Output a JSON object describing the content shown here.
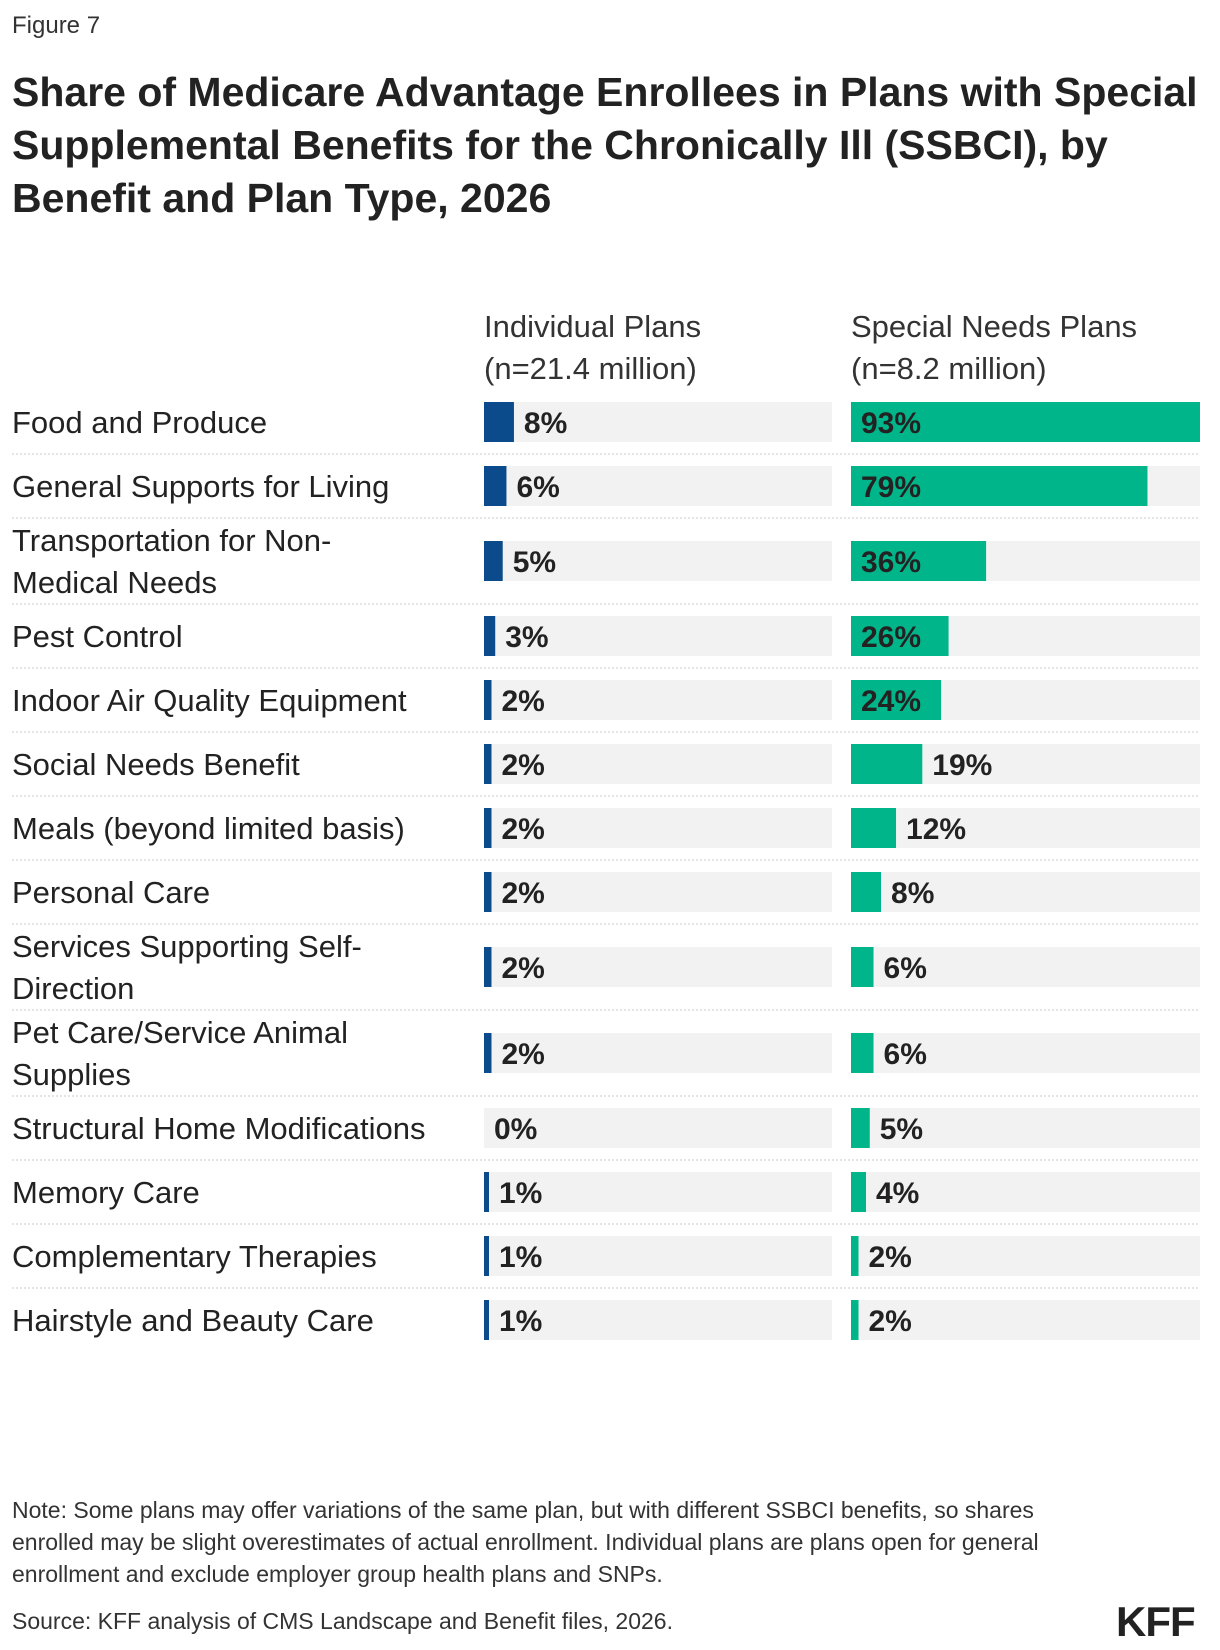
{
  "figure_label": "Figure 7",
  "logo_text": "KFF",
  "colors": {
    "individual": "#0b4a8b",
    "snp": "#00b589",
    "track": "#f2f2f2",
    "divider": "#c8c8c8",
    "text": "#222222"
  },
  "note": "Note: Some plans may offer variations of the same plan, but with different SSBCI benefits, so shares enrolled may be slight overestimates of actual enrollment. Individual plans are plans open for general enrollment and exclude employer group health plans and SNPs.",
  "source": "Source: KFF analysis of CMS Landscape and Benefit files, 2026.",
  "chart_data": {
    "type": "bar",
    "orientation": "horizontal",
    "title": "Share of Medicare Advantage Enrollees in Plans with Special Supplemental Benefits for the Chronically Ill (SSBCI), by Benefit and Plan Type, 2026",
    "value_unit": "%",
    "xlim": [
      0,
      93
    ],
    "grid": false,
    "categories": [
      [
        "Food and Produce"
      ],
      [
        "General Supports for Living"
      ],
      [
        "Transportation for Non-",
        "Medical Needs"
      ],
      [
        "Pest Control"
      ],
      [
        "Indoor Air Quality Equipment"
      ],
      [
        "Social Needs Benefit"
      ],
      [
        "Meals (beyond limited basis)"
      ],
      [
        "Personal Care"
      ],
      [
        "Services Supporting Self-",
        "Direction"
      ],
      [
        "Pet Care/Service Animal",
        "Supplies"
      ],
      [
        "Structural Home Modifications"
      ],
      [
        "Memory Care"
      ],
      [
        "Complementary Therapies"
      ],
      [
        "Hairstyle and Beauty Care"
      ]
    ],
    "series": [
      {
        "name": "Individual Plans",
        "name_line2": "(n=21.4 million)",
        "values": [
          8,
          6,
          5,
          3,
          2,
          2,
          2,
          2,
          2,
          2,
          0,
          1,
          1,
          1
        ]
      },
      {
        "name": "Special Needs Plans",
        "name_line2": "(n=8.2 million)",
        "values": [
          93,
          79,
          36,
          26,
          24,
          19,
          12,
          8,
          6,
          6,
          5,
          4,
          2,
          2
        ]
      }
    ]
  }
}
